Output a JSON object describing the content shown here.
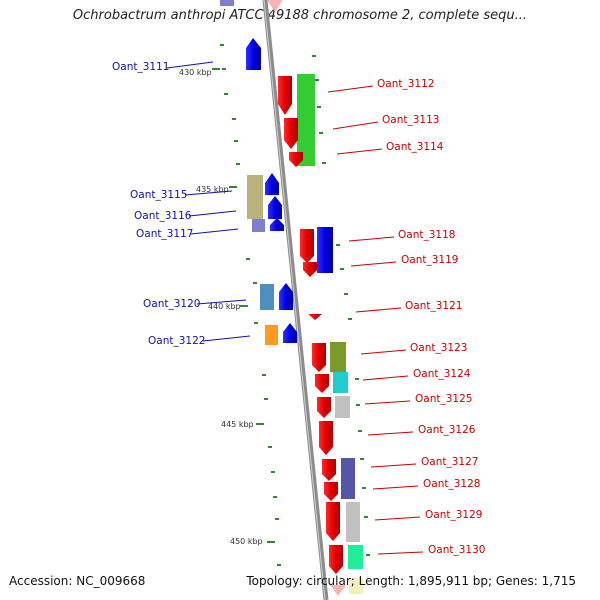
{
  "title": "Ochrobactrum anthropi ATCC 49188 chromosome 2, complete sequ...",
  "footer": {
    "accession": "Accession: NC_009668",
    "summary": "Topology: circular; Length: 1,895,911 bp; Genes: 1,715"
  },
  "colors": {
    "backbone": "#8c8c8c",
    "left_label": "#1010b0",
    "right_label": "#cc0000",
    "tick": "#2e8b2e"
  },
  "kbp_ticks": [
    "430 kbp",
    "435 kbp",
    "440 kbp",
    "445 kbp",
    "450 kbp"
  ],
  "left_genes": [
    {
      "label": "Oant_3111",
      "color": "#1010e0"
    },
    {
      "label": "Oant_3115",
      "color": "#1010e0"
    },
    {
      "label": "Oant_3116",
      "color": "#1010e0"
    },
    {
      "label": "Oant_3117",
      "color": "#1010e0"
    },
    {
      "label": "Oant_3120",
      "color": "#1010e0"
    },
    {
      "label": "Oant_3122",
      "color": "#1010e0"
    }
  ],
  "right_genes": [
    {
      "label": "Oant_3112",
      "color": "#e01010"
    },
    {
      "label": "Oant_3113",
      "color": "#e01010"
    },
    {
      "label": "Oant_3114",
      "color": "#e01010"
    },
    {
      "label": "Oant_3118",
      "color": "#e01010"
    },
    {
      "label": "Oant_3119",
      "color": "#e01010"
    },
    {
      "label": "Oant_3121",
      "color": "#e01010"
    },
    {
      "label": "Oant_3123",
      "color": "#e01010"
    },
    {
      "label": "Oant_3124",
      "color": "#e01010"
    },
    {
      "label": "Oant_3125",
      "color": "#e01010"
    },
    {
      "label": "Oant_3126",
      "color": "#e01010"
    },
    {
      "label": "Oant_3127",
      "color": "#e01010"
    },
    {
      "label": "Oant_3128",
      "color": "#e01010"
    },
    {
      "label": "Oant_3129",
      "color": "#e01010"
    },
    {
      "label": "Oant_3130",
      "color": "#e01010"
    }
  ],
  "cog_colors": [
    "#33cc33",
    "#b8b37a",
    "#7f7fd0",
    "#4f8fc0",
    "#ff9922",
    "#7a9a2a",
    "#22cccc",
    "#c0c0c0",
    "#5555aa",
    "#4488cc",
    "#22ee99"
  ]
}
